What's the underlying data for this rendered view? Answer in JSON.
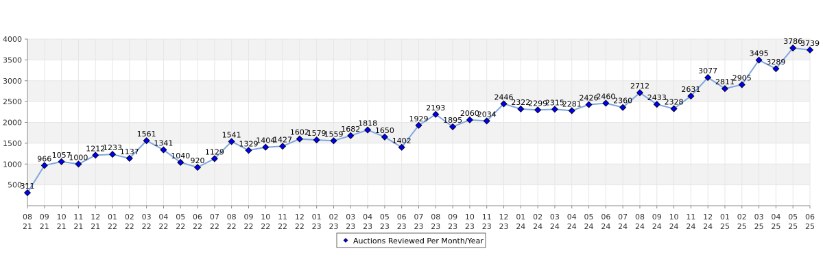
{
  "chart_data": {
    "type": "line",
    "title": "",
    "xlabel": "",
    "ylabel": "",
    "categories": [
      "08 21",
      "09 21",
      "10 21",
      "11 21",
      "12 21",
      "01 22",
      "02 22",
      "03 22",
      "04 22",
      "05 22",
      "06 22",
      "07 22",
      "08 22",
      "09 22",
      "10 22",
      "11 22",
      "12 22",
      "01 23",
      "02 23",
      "03 23",
      "04 23",
      "05 23",
      "06 23",
      "07 23",
      "08 23",
      "09 23",
      "10 23",
      "11 23",
      "12 23",
      "01 24",
      "02 24",
      "03 24",
      "04 24",
      "05 24",
      "06 24",
      "07 24",
      "08 24",
      "09 24",
      "10 24",
      "11 24",
      "12 24",
      "01 25",
      "02 25",
      "03 25",
      "04 25",
      "05 25",
      "06 25"
    ],
    "series": [
      {
        "name": "Auctions Reviewed Per Month/Year",
        "color": "#0000ee",
        "line_color": "#7ea6e0",
        "values": [
          311,
          966,
          1057,
          1000,
          1212,
          1233,
          1137,
          1561,
          1341,
          1040,
          920,
          1129,
          1541,
          1329,
          1404,
          1427,
          1602,
          1579,
          1559,
          1682,
          1818,
          1650,
          1402,
          1929,
          2193,
          1895,
          2060,
          2034,
          2446,
          2322,
          2299,
          2315,
          2281,
          2426,
          2460,
          2360,
          2712,
          2433,
          2328,
          2631,
          3077,
          2811,
          2905,
          3495,
          3289,
          3786,
          3739
        ]
      }
    ],
    "ylim": [
      0,
      4000
    ],
    "yticks": [
      500,
      1000,
      1500,
      2000,
      2500,
      3000,
      3500,
      4000
    ],
    "grid": true,
    "legend_position": "bottom-center",
    "band_color": "#f2f2f2",
    "grid_color": "#e6e6e6"
  }
}
